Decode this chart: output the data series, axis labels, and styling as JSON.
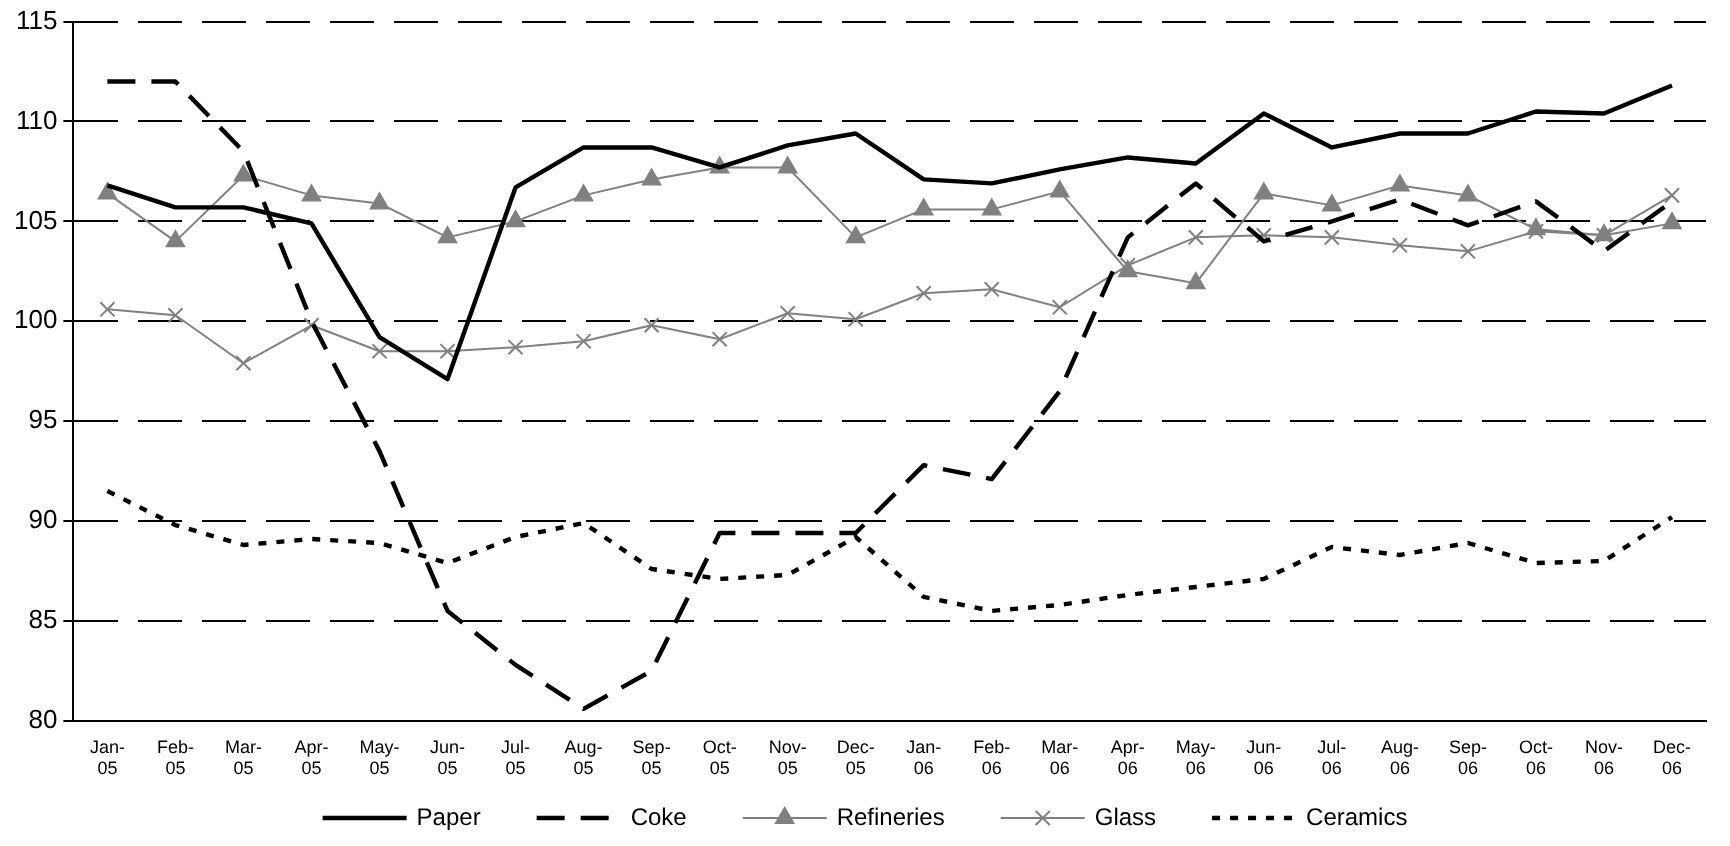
{
  "chart_data": {
    "type": "line",
    "categories": [
      "Jan-05",
      "Feb-05",
      "Mar-05",
      "Apr-05",
      "May-05",
      "Jun-05",
      "Jul-05",
      "Aug-05",
      "Sep-05",
      "Oct-05",
      "Nov-05",
      "Dec-05",
      "Jan-06",
      "Feb-06",
      "Mar-06",
      "Apr-06",
      "May-06",
      "Jun-06",
      "Jul-06",
      "Aug-06",
      "Sep-06",
      "Oct-06",
      "Nov-06",
      "Dec-06"
    ],
    "series": [
      {
        "name": "Paper",
        "color": "#000000",
        "line_style": "solid",
        "marker": "none",
        "values": [
          106.8,
          105.7,
          105.7,
          104.9,
          99.2,
          97.1,
          106.7,
          108.7,
          108.7,
          107.7,
          108.8,
          109.4,
          107.1,
          106.9,
          107.6,
          108.2,
          107.9,
          110.4,
          108.7,
          109.4,
          109.4,
          110.5,
          110.4,
          111.8
        ]
      },
      {
        "name": "Coke",
        "color": "#000000",
        "line_style": "dashed",
        "marker": "none",
        "values": [
          112,
          112,
          108.5,
          100,
          93.5,
          85.5,
          82.8,
          80.6,
          82.5,
          89.4,
          89.4,
          89.4,
          92.8,
          92.1,
          96.5,
          104.2,
          106.9,
          104,
          105,
          106.1,
          104.8,
          106,
          103.5,
          106
        ]
      },
      {
        "name": "Refineries",
        "color": "#808080",
        "line_style": "solid",
        "marker": "triangle",
        "values": [
          106.4,
          104,
          107.3,
          106.3,
          105.9,
          104.2,
          105,
          106.3,
          107.1,
          107.7,
          107.7,
          104.2,
          105.6,
          105.6,
          106.5,
          102.5,
          101.9,
          106.4,
          105.8,
          106.8,
          106.3,
          104.6,
          104.3,
          104.9
        ]
      },
      {
        "name": "Glass",
        "color": "#808080",
        "line_style": "solid",
        "marker": "cross",
        "values": [
          100.6,
          100.3,
          97.9,
          99.8,
          98.5,
          98.5,
          98.7,
          99,
          99.8,
          99.1,
          100.4,
          100.1,
          101.4,
          101.6,
          100.7,
          102.8,
          104.2,
          104.3,
          104.2,
          103.8,
          103.5,
          104.5,
          104.3,
          106.3
        ]
      },
      {
        "name": "Ceramics",
        "color": "#000000",
        "line_style": "dotted",
        "marker": "none",
        "values": [
          91.5,
          89.8,
          88.8,
          89.1,
          88.9,
          87.9,
          89.2,
          89.9,
          87.6,
          87.1,
          87.3,
          89.2,
          86.2,
          85.5,
          85.8,
          86.3,
          86.7,
          87.1,
          88.7,
          88.3,
          88.9,
          87.9,
          88,
          90.2
        ]
      }
    ],
    "ylim": [
      80,
      115
    ],
    "yticks": [
      80,
      85,
      90,
      95,
      100,
      105,
      110,
      115
    ],
    "grid": "y",
    "legend": "bottom"
  }
}
